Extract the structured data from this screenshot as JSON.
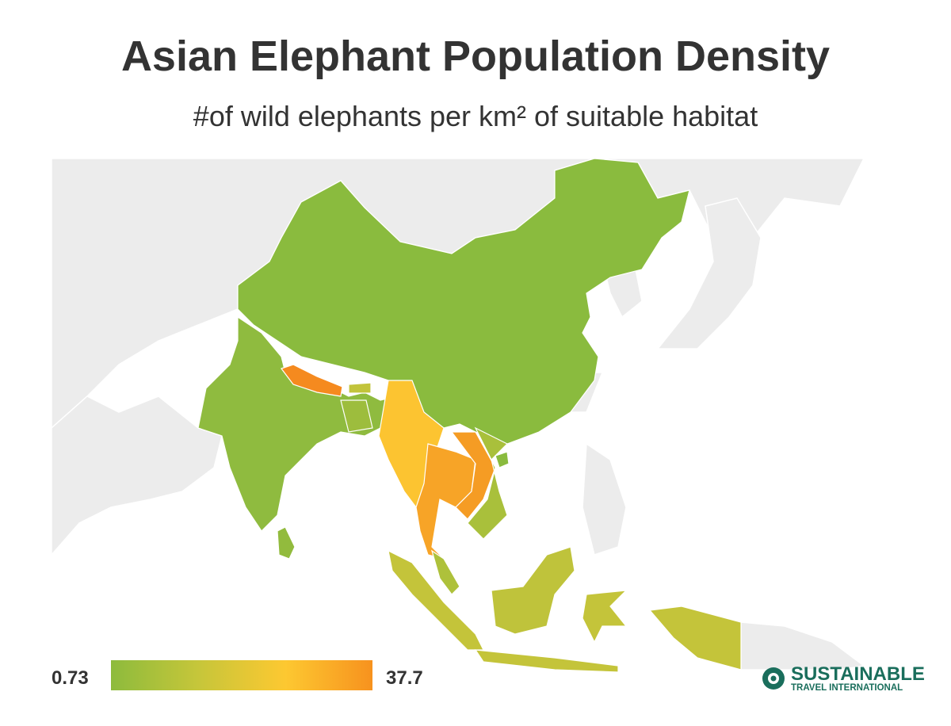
{
  "header": {
    "title": "Asian Elephant Population Density",
    "subtitle": "#of wild elephants per km² of suitable habitat"
  },
  "legend": {
    "min": 0.73,
    "max": 37.7,
    "colors": [
      "#8dbb3c",
      "#c6c63a",
      "#fdc831",
      "#f7921e"
    ]
  },
  "brand": {
    "name": "SUSTAINABLE",
    "tagline": "TRAVEL INTERNATIONAL"
  }
}
